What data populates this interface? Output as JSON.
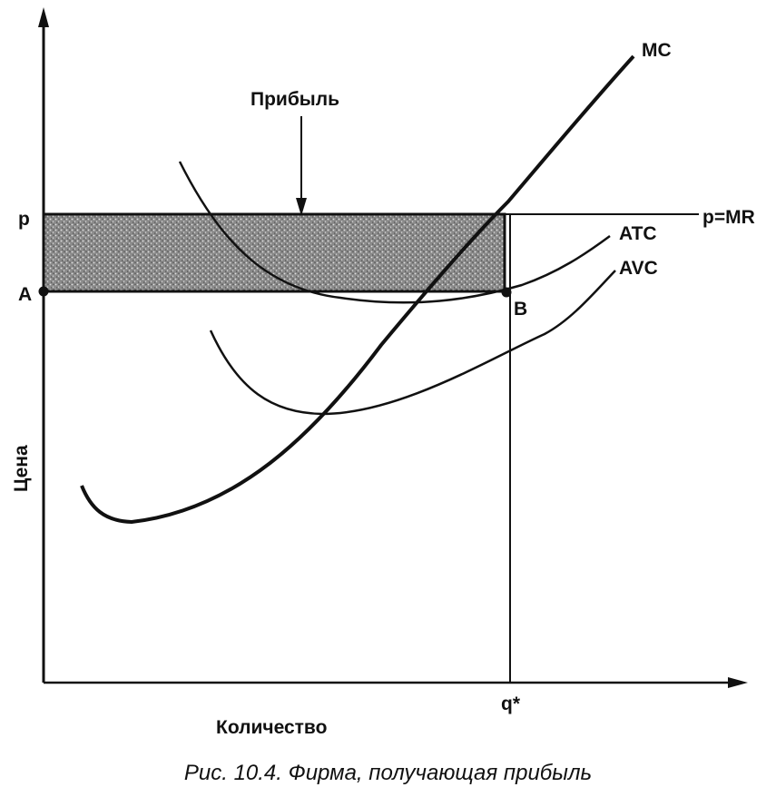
{
  "chart_data": {
    "type": "line",
    "title": "",
    "xlabel": "Количество",
    "ylabel": "Цена",
    "shaded_region_label": "Прибыль",
    "tick_labels": {
      "y_p": "p",
      "y_A": "A",
      "x_q": "q*",
      "point_B": "B"
    },
    "series": [
      {
        "name": "MC"
      },
      {
        "name": "ATC"
      },
      {
        "name": "AVC"
      },
      {
        "name": "p=MR"
      }
    ]
  },
  "caption": "Рис. 10.4. Фирма, получающая прибыль"
}
